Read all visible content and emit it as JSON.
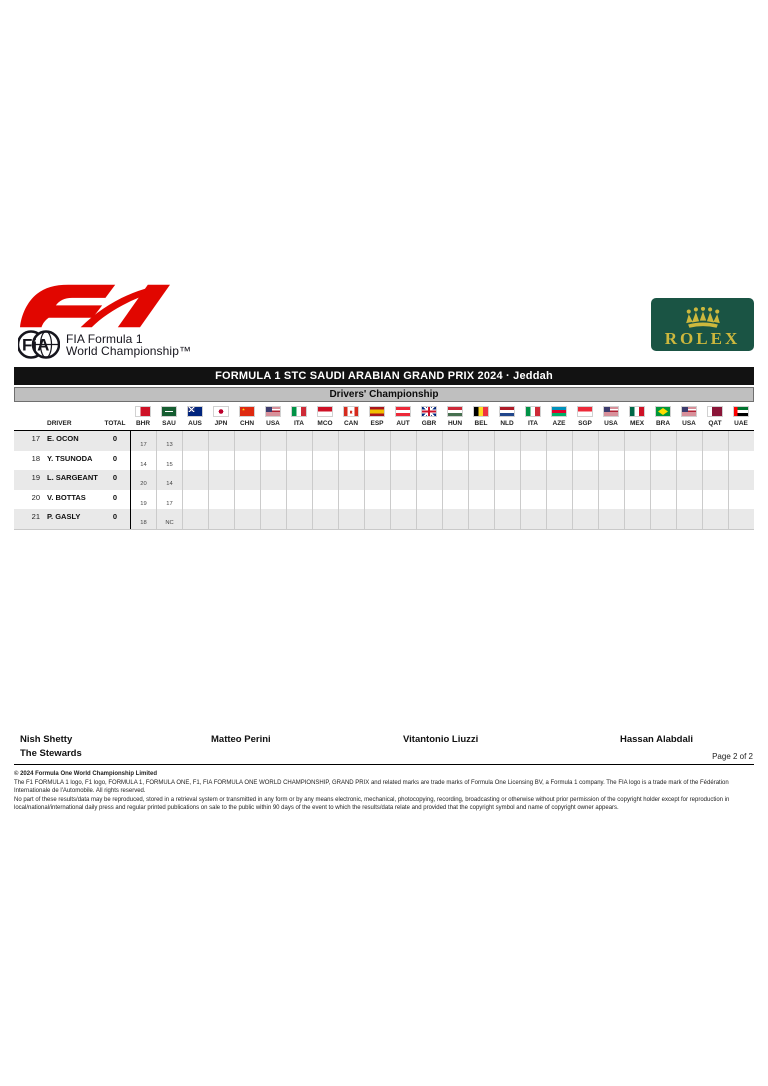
{
  "branding": {
    "fia_emblem_text": "FiA",
    "fia_line1": "FIA Formula 1",
    "fia_line2": "World Championship™",
    "rolex_wordmark": "ROLEX",
    "f1_red": "#E10600",
    "rolex_green": "#1A5444",
    "rolex_gold": "#CDB83D"
  },
  "banners": {
    "event_title": "FORMULA 1 STC SAUDI ARABIAN GRAND PRIX 2024 · Jeddah",
    "subtitle": "Drivers' Championship"
  },
  "table": {
    "headers": {
      "driver": "DRIVER",
      "total": "TOTAL"
    },
    "races": [
      {
        "code": "BHR",
        "flag": "bhr"
      },
      {
        "code": "SAU",
        "flag": "sau"
      },
      {
        "code": "AUS",
        "flag": "aus"
      },
      {
        "code": "JPN",
        "flag": "jpn"
      },
      {
        "code": "CHN",
        "flag": "chn"
      },
      {
        "code": "USA",
        "flag": "usa"
      },
      {
        "code": "ITA",
        "flag": "ita"
      },
      {
        "code": "MCO",
        "flag": "mco"
      },
      {
        "code": "CAN",
        "flag": "can"
      },
      {
        "code": "ESP",
        "flag": "esp"
      },
      {
        "code": "AUT",
        "flag": "aut"
      },
      {
        "code": "GBR",
        "flag": "gbr"
      },
      {
        "code": "HUN",
        "flag": "hun"
      },
      {
        "code": "BEL",
        "flag": "bel"
      },
      {
        "code": "NLD",
        "flag": "nld"
      },
      {
        "code": "ITA",
        "flag": "ita"
      },
      {
        "code": "AZE",
        "flag": "aze"
      },
      {
        "code": "SGP",
        "flag": "sgp"
      },
      {
        "code": "USA",
        "flag": "usa"
      },
      {
        "code": "MEX",
        "flag": "mex"
      },
      {
        "code": "BRA",
        "flag": "bra"
      },
      {
        "code": "USA",
        "flag": "usa"
      },
      {
        "code": "QAT",
        "flag": "qat"
      },
      {
        "code": "UAE",
        "flag": "uae"
      }
    ],
    "rows": [
      {
        "pos": "17",
        "driver": "E. OCON",
        "total": "0",
        "results": [
          "17",
          "13",
          "",
          "",
          "",
          "",
          "",
          "",
          "",
          "",
          "",
          "",
          "",
          "",
          "",
          "",
          "",
          "",
          "",
          "",
          "",
          "",
          "",
          ""
        ]
      },
      {
        "pos": "18",
        "driver": "Y. TSUNODA",
        "total": "0",
        "results": [
          "14",
          "15",
          "",
          "",
          "",
          "",
          "",
          "",
          "",
          "",
          "",
          "",
          "",
          "",
          "",
          "",
          "",
          "",
          "",
          "",
          "",
          "",
          "",
          ""
        ]
      },
      {
        "pos": "19",
        "driver": "L. SARGEANT",
        "total": "0",
        "results": [
          "20",
          "14",
          "",
          "",
          "",
          "",
          "",
          "",
          "",
          "",
          "",
          "",
          "",
          "",
          "",
          "",
          "",
          "",
          "",
          "",
          "",
          "",
          "",
          ""
        ]
      },
      {
        "pos": "20",
        "driver": "V. BOTTAS",
        "total": "0",
        "results": [
          "19",
          "17",
          "",
          "",
          "",
          "",
          "",
          "",
          "",
          "",
          "",
          "",
          "",
          "",
          "",
          "",
          "",
          "",
          "",
          "",
          "",
          "",
          "",
          ""
        ]
      },
      {
        "pos": "21",
        "driver": "P. GASLY",
        "total": "0",
        "results": [
          "18",
          "NC",
          "",
          "",
          "",
          "",
          "",
          "",
          "",
          "",
          "",
          "",
          "",
          "",
          "",
          "",
          "",
          "",
          "",
          "",
          "",
          "",
          "",
          ""
        ]
      }
    ]
  },
  "footer": {
    "stewards": [
      "Nish Shetty",
      "Matteo Perini",
      "Vitantonio Liuzzi",
      "Hassan Alabdali"
    ],
    "role_label": "The Stewards",
    "page_label": "Page 2 of 2",
    "copyright_heading": "© 2024 Formula One World Championship Limited",
    "copyright_paragraphs": [
      "The F1 FORMULA 1 logo, F1 logo, FORMULA 1, FORMULA ONE, F1, FIA FORMULA ONE WORLD CHAMPIONSHIP, GRAND PRIX and related marks are trade marks of Formula One Licensing BV, a Formula 1 company. The FIA logo is a trade mark of the Fédération Internationale de l'Automobile. All rights reserved.",
      "No part of these results/data may be reproduced, stored in a retrieval system or transmitted in any form or by any means electronic, mechanical, photocopying, recording, broadcasting or otherwise without prior permission of the copyright holder except for reproduction in local/national/international daily press and regular printed publications on sale to the public within 90 days of the event to which the results/data relate and provided that the copyright symbol and name of copyright owner appears."
    ]
  }
}
